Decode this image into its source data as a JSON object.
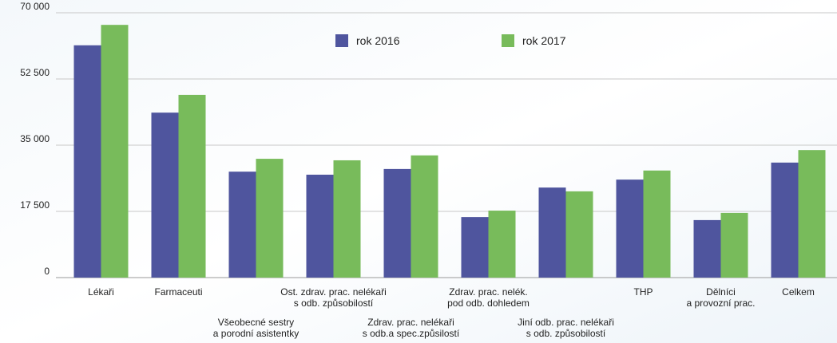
{
  "chart_data": {
    "type": "bar",
    "categories": [
      "Lékaři",
      "Farmaceuti",
      "Všeobecné sestry\na porodní asistentky",
      "Ost. zdrav. prac. nelékaři\ns odb. způsobilostí",
      "Zdrav. prac. nelékaři\ns odb.a spec.způsilostí",
      "Zdrav. prac. nelék.\npod odb. dohledem",
      "Jiní odb. prac. nelékaři\ns odb. způsobilostí",
      "THP",
      "Dělníci\na provozní prac.",
      "Celkem"
    ],
    "series": [
      {
        "name": "rok 2016",
        "color": "#4f559e",
        "values": [
          61400,
          43600,
          28000,
          27200,
          28700,
          16000,
          23800,
          25900,
          15200,
          30400
        ]
      },
      {
        "name": "rok 2017",
        "color": "#78bb5b",
        "values": [
          66800,
          48300,
          31400,
          31000,
          32300,
          17700,
          22800,
          28300,
          17100,
          33700
        ]
      }
    ],
    "ylim": [
      0,
      70000
    ],
    "yticks": [
      0,
      {
        "value": 17500,
        "label": "17 500"
      },
      {
        "value": 35000,
        "label": "35 000"
      },
      {
        "value": 52500,
        "label": "52 500"
      },
      {
        "value": 70000,
        "label": "70 000"
      }
    ],
    "grid": true,
    "legend": "top"
  }
}
